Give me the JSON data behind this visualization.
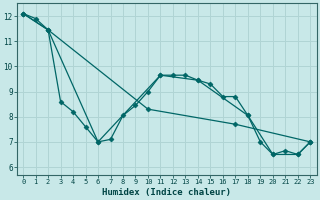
{
  "xlabel": "Humidex (Indice chaleur)",
  "bg_color": "#c8e8e8",
  "grid_color": "#b0d4d4",
  "line_color": "#006666",
  "xlim": [
    -0.5,
    23.5
  ],
  "ylim": [
    5.7,
    12.5
  ],
  "yticks": [
    6,
    7,
    8,
    9,
    10,
    11,
    12
  ],
  "xticks": [
    0,
    1,
    2,
    3,
    4,
    5,
    6,
    7,
    8,
    9,
    10,
    11,
    12,
    13,
    14,
    15,
    16,
    17,
    18,
    19,
    20,
    21,
    22,
    23
  ],
  "line1_x": [
    0,
    1,
    2,
    3,
    4,
    5,
    6,
    7,
    8,
    9,
    10,
    11,
    12,
    13,
    14,
    15,
    16,
    17,
    18,
    19,
    20,
    21,
    22,
    23
  ],
  "line1_y": [
    12.1,
    11.9,
    11.45,
    8.6,
    8.2,
    7.6,
    7.0,
    7.1,
    8.05,
    8.45,
    9.0,
    9.65,
    9.65,
    9.65,
    9.45,
    9.3,
    8.8,
    8.8,
    8.05,
    7.0,
    6.5,
    6.65,
    6.5,
    7.0
  ],
  "line2_x": [
    0,
    2,
    10,
    17,
    23
  ],
  "line2_y": [
    12.1,
    11.45,
    8.3,
    7.7,
    7.0
  ],
  "line3_x": [
    0,
    2,
    6,
    11,
    14,
    18,
    20,
    22,
    23
  ],
  "line3_y": [
    12.1,
    11.45,
    7.0,
    9.65,
    9.45,
    8.05,
    6.5,
    6.5,
    7.0
  ]
}
